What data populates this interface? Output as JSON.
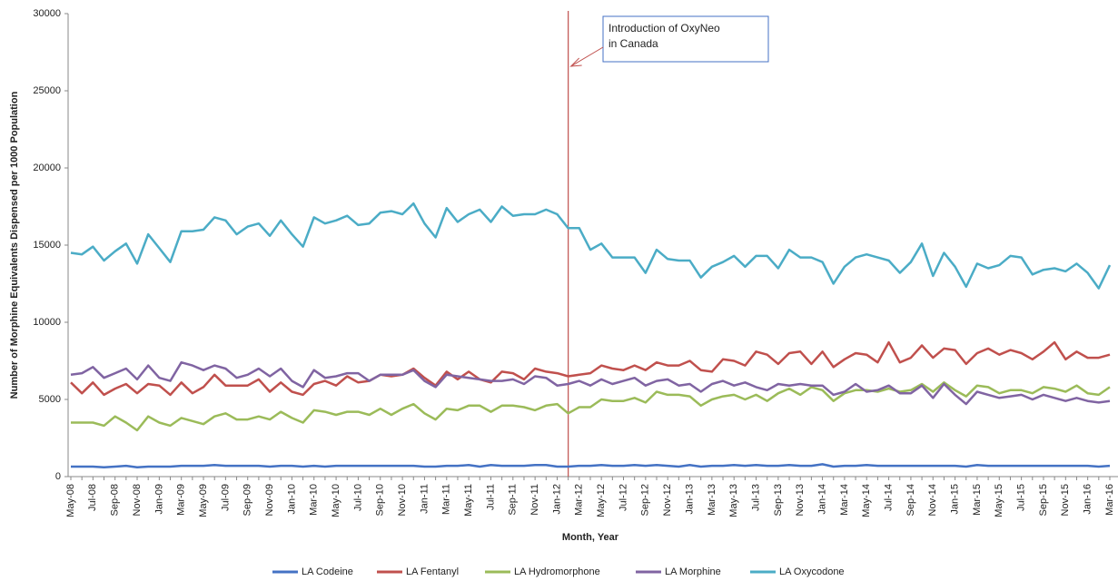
{
  "chart_data": {
    "type": "line",
    "y_label": "Number of Morphine Equivalents Dispensed per 1000 Population",
    "x_label": "Month, Year",
    "annotation": [
      "Introduction of OxyNeo",
      "in Canada"
    ],
    "categories": [
      "May-08",
      null,
      "Jul-08",
      null,
      "Sep-08",
      null,
      "Nov-08",
      null,
      "Jan-09",
      null,
      "Mar-09",
      null,
      "May-09",
      null,
      "Jul-09",
      null,
      "Sep-09",
      null,
      "Nov-09",
      null,
      "Jan-10",
      null,
      "Mar-10",
      null,
      "May-10",
      null,
      "Jul-10",
      null,
      "Sep-10",
      null,
      "Nov-10",
      null,
      "Jan-11",
      null,
      "Mar-11",
      null,
      "May-11",
      null,
      "Jul-11",
      null,
      "Sep-11",
      null,
      "Nov-11",
      null,
      "Jan-12",
      null,
      "Mar-12",
      null,
      "May-12",
      null,
      "Jul-12",
      null,
      "Sep-12",
      null,
      "Nov-12",
      null,
      "Jan-13",
      null,
      "Mar-13",
      null,
      "May-13",
      null,
      "Jul-13",
      null,
      "Sep-13",
      null,
      "Nov-13",
      null,
      "Jan-14",
      null,
      "Mar-14",
      null,
      "May-14",
      null,
      "Jul-14",
      null,
      "Sep-14",
      null,
      "Nov-14",
      null,
      "Jan-15",
      null,
      "Mar-15",
      null,
      "May-15",
      null,
      "Jul-15",
      null,
      "Sep-15",
      null,
      "Nov-15",
      null,
      "Jan-16",
      null,
      "Mar-16"
    ],
    "ylim": [
      0,
      30000
    ],
    "yticks": [
      0,
      5000,
      10000,
      15000,
      20000,
      25000,
      30000
    ],
    "grid": false,
    "legend": "bottom",
    "series": [
      {
        "name": "LA Codeine",
        "color": "#4472c4",
        "values": [
          650,
          650,
          650,
          600,
          650,
          700,
          600,
          650,
          650,
          650,
          700,
          700,
          700,
          750,
          700,
          700,
          700,
          700,
          650,
          700,
          700,
          650,
          700,
          650,
          700,
          700,
          700,
          700,
          700,
          700,
          700,
          700,
          650,
          650,
          700,
          700,
          750,
          650,
          750,
          700,
          700,
          700,
          750,
          750,
          650,
          650,
          700,
          700,
          750,
          700,
          700,
          750,
          700,
          750,
          700,
          650,
          750,
          650,
          700,
          700,
          750,
          700,
          750,
          700,
          700,
          750,
          700,
          700,
          800,
          650,
          700,
          700,
          750,
          700,
          700,
          700,
          700,
          700,
          700,
          700,
          700,
          650,
          750,
          700,
          700,
          700,
          700,
          700,
          700,
          700,
          700,
          700,
          700,
          650,
          700
        ]
      },
      {
        "name": "LA Fentanyl",
        "color": "#c0504d",
        "values": [
          6100,
          5400,
          6100,
          5300,
          5700,
          6000,
          5400,
          6000,
          5900,
          5300,
          6100,
          5400,
          5800,
          6600,
          5900,
          5900,
          5900,
          6300,
          5500,
          6100,
          5500,
          5300,
          6000,
          6200,
          5900,
          6500,
          6100,
          6200,
          6600,
          6500,
          6600,
          7000,
          6400,
          5900,
          6800,
          6300,
          6800,
          6300,
          6100,
          6800,
          6700,
          6300,
          7000,
          6800,
          6700,
          6500,
          6600,
          6700,
          7200,
          7000,
          6900,
          7200,
          6900,
          7400,
          7200,
          7200,
          7500,
          6900,
          6800,
          7600,
          7500,
          7200,
          8100,
          7900,
          7300,
          8000,
          8100,
          7300,
          8100,
          7100,
          7600,
          8000,
          7900,
          7400,
          8700,
          7400,
          7700,
          8500,
          7700,
          8300,
          8200,
          7300,
          8000,
          8300,
          7900,
          8200,
          8000,
          7600,
          8100,
          8700,
          7600,
          8100,
          7700,
          7700,
          7900
        ]
      },
      {
        "name": "LA Hydromorphone",
        "color": "#9bbb59",
        "values": [
          3500,
          3500,
          3500,
          3300,
          3900,
          3500,
          3000,
          3900,
          3500,
          3300,
          3800,
          3600,
          3400,
          3900,
          4100,
          3700,
          3700,
          3900,
          3700,
          4200,
          3800,
          3500,
          4300,
          4200,
          4000,
          4200,
          4200,
          4000,
          4400,
          4000,
          4400,
          4700,
          4100,
          3700,
          4400,
          4300,
          4600,
          4600,
          4200,
          4600,
          4600,
          4500,
          4300,
          4600,
          4700,
          4100,
          4500,
          4500,
          5000,
          4900,
          4900,
          5100,
          4800,
          5500,
          5300,
          5300,
          5200,
          4600,
          5000,
          5200,
          5300,
          5000,
          5300,
          4900,
          5400,
          5700,
          5300,
          5800,
          5600,
          4900,
          5400,
          5600,
          5600,
          5500,
          5700,
          5500,
          5600,
          6000,
          5500,
          6100,
          5600,
          5200,
          5900,
          5800,
          5400,
          5600,
          5600,
          5400,
          5800,
          5700,
          5500,
          5900,
          5400,
          5300,
          5800
        ]
      },
      {
        "name": "LA Morphine",
        "color": "#8064a2",
        "values": [
          6600,
          6700,
          7100,
          6400,
          6700,
          7000,
          6300,
          7200,
          6400,
          6200,
          7400,
          7200,
          6900,
          7200,
          7000,
          6400,
          6600,
          7000,
          6500,
          7000,
          6200,
          5800,
          6900,
          6400,
          6500,
          6700,
          6700,
          6200,
          6600,
          6600,
          6600,
          6900,
          6200,
          5800,
          6600,
          6500,
          6400,
          6300,
          6200,
          6200,
          6300,
          6000,
          6500,
          6400,
          5900,
          6000,
          6200,
          5900,
          6300,
          6000,
          6200,
          6400,
          5900,
          6200,
          6300,
          5900,
          6000,
          5500,
          6000,
          6200,
          5900,
          6100,
          5800,
          5600,
          6000,
          5900,
          6000,
          5900,
          5900,
          5300,
          5500,
          6000,
          5500,
          5600,
          5900,
          5400,
          5400,
          5900,
          5100,
          6000,
          5300,
          4700,
          5500,
          5300,
          5100,
          5200,
          5300,
          5000,
          5300,
          5100,
          4900,
          5100,
          4900,
          4800,
          4900
        ]
      },
      {
        "name": "LA Oxycodone",
        "color": "#4bacc6",
        "values": [
          14500,
          14400,
          14900,
          14000,
          14600,
          15100,
          13800,
          15700,
          14800,
          13900,
          15900,
          15900,
          16000,
          16800,
          16600,
          15700,
          16200,
          16400,
          15600,
          16600,
          15700,
          14900,
          16800,
          16400,
          16600,
          16900,
          16300,
          16400,
          17100,
          17200,
          17000,
          17700,
          16400,
          15500,
          17400,
          16500,
          17000,
          17300,
          16500,
          17500,
          16900,
          17000,
          17000,
          17300,
          17000,
          16100,
          16100,
          14700,
          15100,
          14200,
          14200,
          14200,
          13200,
          14700,
          14100,
          14000,
          14000,
          12900,
          13600,
          13900,
          14300,
          13600,
          14300,
          14300,
          13500,
          14700,
          14200,
          14200,
          13900,
          12500,
          13600,
          14200,
          14400,
          14200,
          14000,
          13200,
          13900,
          15100,
          13000,
          14500,
          13600,
          12300,
          13800,
          13500,
          13700,
          14300,
          14200,
          13100,
          13400,
          13500,
          13300,
          13800,
          13200,
          12200,
          13700
        ]
      }
    ]
  }
}
